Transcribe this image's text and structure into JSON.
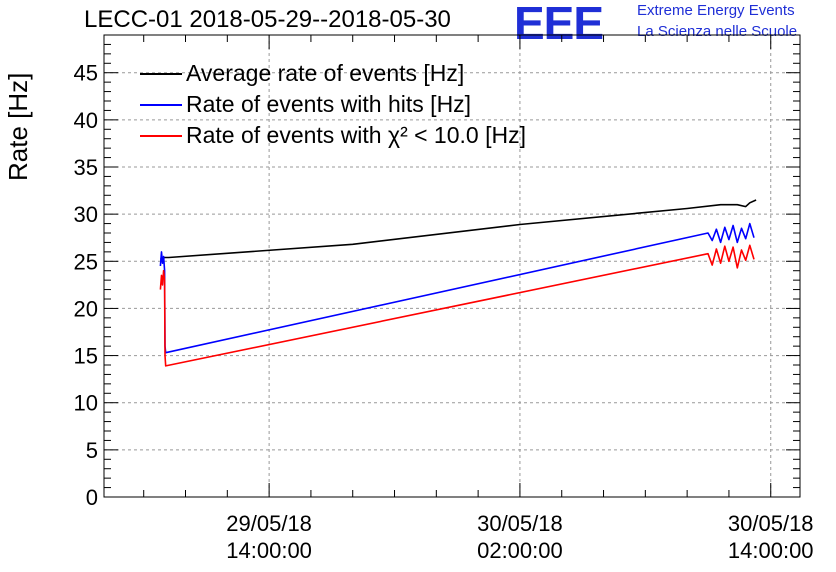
{
  "chart_data": {
    "type": "line",
    "title": "LECC-01 2018-05-29--2018-05-30",
    "ylabel": "Rate [Hz]",
    "ylim": [
      0,
      49
    ],
    "yticks": [
      0,
      5,
      10,
      15,
      20,
      25,
      30,
      35,
      40,
      45
    ],
    "xticks": [
      {
        "date": "29/05/18",
        "time": "14:00:00",
        "hours": 0
      },
      {
        "date": "30/05/18",
        "time": "02:00:00",
        "hours": 12
      },
      {
        "date": "30/05/18",
        "time": "14:00:00",
        "hours": 24
      }
    ],
    "xlim_hours": [
      -7.9,
      25.4
    ],
    "grid": true,
    "legend_position": "top-left",
    "series": [
      {
        "name": "Average rate of events [Hz]",
        "color": "#000000",
        "x_hours": [
          -5.2,
          -5.0,
          -4.8,
          4.0,
          12.0,
          20.0,
          21.6,
          22.4,
          22.8,
          23.0,
          23.3
        ],
        "y": [
          25.2,
          25.4,
          25.4,
          26.8,
          28.9,
          30.6,
          31.0,
          31.0,
          30.8,
          31.2,
          31.5
        ]
      },
      {
        "name": "Rate of events with hits [Hz]",
        "color": "#0000ff",
        "x_hours": [
          -5.2,
          -5.15,
          -5.1,
          -5.05,
          -5.0,
          -4.98,
          -4.95,
          21.0,
          21.2,
          21.4,
          21.6,
          21.8,
          22.0,
          22.2,
          22.4,
          22.6,
          22.8,
          23.0,
          23.2
        ],
        "y": [
          24.5,
          26.0,
          24.8,
          25.5,
          24.0,
          16.0,
          15.3,
          28.0,
          27.2,
          28.4,
          27.0,
          28.6,
          27.3,
          28.8,
          27.0,
          28.5,
          27.4,
          29.0,
          27.5
        ]
      },
      {
        "name": "Rate of events with χ² < 10.0 [Hz]",
        "color": "#ff0000",
        "x_hours": [
          -5.2,
          -5.15,
          -5.1,
          -5.05,
          -5.0,
          -4.98,
          -4.95,
          21.0,
          21.2,
          21.4,
          21.6,
          21.8,
          22.0,
          22.2,
          22.4,
          22.6,
          22.8,
          23.0,
          23.2
        ],
        "y": [
          22.0,
          23.5,
          22.5,
          24.0,
          23.0,
          15.0,
          13.9,
          25.8,
          24.6,
          26.3,
          24.8,
          26.6,
          25.0,
          26.5,
          24.3,
          26.2,
          25.1,
          26.7,
          25.2
        ]
      }
    ]
  },
  "logo": {
    "mark": "EEE",
    "line1": "Extreme Energy Events",
    "line2": "La Scienza nelle Scuole",
    "color": "#1f2fd6"
  }
}
